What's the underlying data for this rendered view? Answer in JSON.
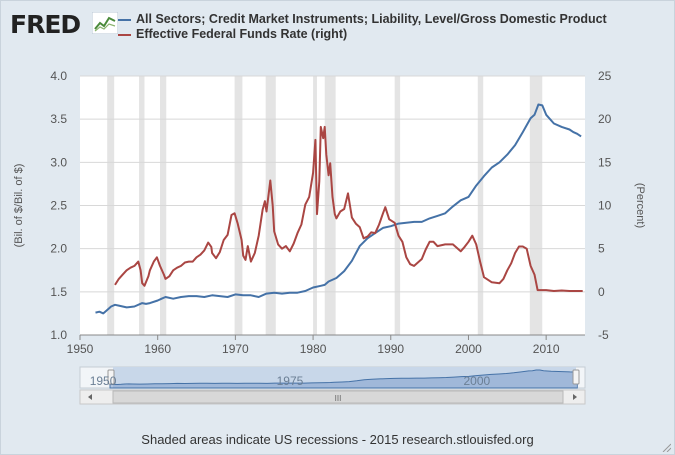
{
  "logo": {
    "text": "FRED",
    "icon": "fred-graph-icon"
  },
  "legend": [
    {
      "label": "All Sectors; Credit Market Instruments; Liability, Level/Gross Domestic Product",
      "color": "#4572a7"
    },
    {
      "label": "Effective Federal Funds Rate (right)",
      "color": "#aa4643"
    }
  ],
  "footer": "Shaded areas indicate US recessions - 2015 research.stlouisfed.org",
  "navigator": {
    "labels": [
      "1950",
      "1975",
      "2000"
    ],
    "scroll_icon": "III"
  },
  "chart_data": {
    "type": "line",
    "xlim": [
      1950,
      2015
    ],
    "x_ticks": [
      1950,
      1960,
      1970,
      1980,
      1990,
      2000,
      2010
    ],
    "y_left": {
      "label": "(Bil. of $/Bil. of $)",
      "lim": [
        1.0,
        4.0
      ],
      "ticks": [
        "1.0",
        "1.5",
        "2.0",
        "2.5",
        "3.0",
        "3.5",
        "4.0"
      ]
    },
    "y_right": {
      "label": "(Percent)",
      "lim": [
        -5,
        25
      ],
      "ticks": [
        "-5",
        "0",
        "5",
        "10",
        "15",
        "20",
        "25"
      ]
    },
    "recessions": [
      [
        1953.5,
        1954.4
      ],
      [
        1957.6,
        1958.3
      ],
      [
        1960.3,
        1961.1
      ],
      [
        1969.9,
        1970.9
      ],
      [
        1973.9,
        1975.2
      ],
      [
        1980.0,
        1980.5
      ],
      [
        1981.5,
        1982.9
      ],
      [
        1990.5,
        1991.2
      ],
      [
        2001.2,
        2001.9
      ],
      [
        2007.9,
        2009.5
      ]
    ],
    "series": [
      {
        "name": "All Sectors; Credit Market Instruments; Liability, Level/Gross Domestic Product",
        "axis": "left",
        "color": "#4572a7",
        "points": [
          [
            1952,
            1.26
          ],
          [
            1952.5,
            1.27
          ],
          [
            1953,
            1.25
          ],
          [
            1953.5,
            1.29
          ],
          [
            1954,
            1.33
          ],
          [
            1954.5,
            1.35
          ],
          [
            1955,
            1.34
          ],
          [
            1956,
            1.32
          ],
          [
            1957,
            1.33
          ],
          [
            1958,
            1.37
          ],
          [
            1958.5,
            1.36
          ],
          [
            1959,
            1.37
          ],
          [
            1960,
            1.4
          ],
          [
            1960.5,
            1.42
          ],
          [
            1961,
            1.44
          ],
          [
            1962,
            1.42
          ],
          [
            1963,
            1.44
          ],
          [
            1964,
            1.45
          ],
          [
            1965,
            1.45
          ],
          [
            1966,
            1.44
          ],
          [
            1967,
            1.46
          ],
          [
            1968,
            1.45
          ],
          [
            1969,
            1.44
          ],
          [
            1970,
            1.47
          ],
          [
            1971,
            1.46
          ],
          [
            1972,
            1.46
          ],
          [
            1973,
            1.44
          ],
          [
            1974,
            1.48
          ],
          [
            1975,
            1.49
          ],
          [
            1976,
            1.48
          ],
          [
            1977,
            1.49
          ],
          [
            1978,
            1.49
          ],
          [
            1979,
            1.51
          ],
          [
            1980,
            1.55
          ],
          [
            1981,
            1.57
          ],
          [
            1981.5,
            1.58
          ],
          [
            1982,
            1.62
          ],
          [
            1983,
            1.66
          ],
          [
            1984,
            1.74
          ],
          [
            1985,
            1.86
          ],
          [
            1986,
            2.03
          ],
          [
            1987,
            2.12
          ],
          [
            1988,
            2.18
          ],
          [
            1989,
            2.24
          ],
          [
            1990,
            2.26
          ],
          [
            1991,
            2.29
          ],
          [
            1992,
            2.3
          ],
          [
            1993,
            2.31
          ],
          [
            1994,
            2.31
          ],
          [
            1995,
            2.35
          ],
          [
            1996,
            2.38
          ],
          [
            1997,
            2.41
          ],
          [
            1998,
            2.49
          ],
          [
            1999,
            2.56
          ],
          [
            2000,
            2.6
          ],
          [
            2001,
            2.73
          ],
          [
            2002,
            2.84
          ],
          [
            2003,
            2.94
          ],
          [
            2004,
            3.0
          ],
          [
            2005,
            3.09
          ],
          [
            2006,
            3.2
          ],
          [
            2007,
            3.35
          ],
          [
            2008,
            3.51
          ],
          [
            2008.5,
            3.55
          ],
          [
            2009,
            3.67
          ],
          [
            2009.5,
            3.66
          ],
          [
            2010,
            3.55
          ],
          [
            2011,
            3.45
          ],
          [
            2012,
            3.41
          ],
          [
            2013,
            3.38
          ],
          [
            2013.5,
            3.35
          ],
          [
            2014,
            3.33
          ],
          [
            2014.5,
            3.3
          ]
        ]
      },
      {
        "name": "Effective Federal Funds Rate (right)",
        "axis": "right",
        "color": "#aa4643",
        "points": [
          [
            1954.5,
            0.8
          ],
          [
            1955,
            1.5
          ],
          [
            1955.5,
            2.0
          ],
          [
            1956,
            2.5
          ],
          [
            1956.5,
            2.8
          ],
          [
            1957,
            3.0
          ],
          [
            1957.5,
            3.5
          ],
          [
            1957.8,
            2.5
          ],
          [
            1958,
            1.0
          ],
          [
            1958.3,
            0.7
          ],
          [
            1958.8,
            1.8
          ],
          [
            1959,
            2.5
          ],
          [
            1959.5,
            3.5
          ],
          [
            1959.9,
            4.0
          ],
          [
            1960.3,
            3.0
          ],
          [
            1960.8,
            2.0
          ],
          [
            1961,
            1.5
          ],
          [
            1961.5,
            1.8
          ],
          [
            1962,
            2.5
          ],
          [
            1962.5,
            2.8
          ],
          [
            1963,
            3.0
          ],
          [
            1963.5,
            3.4
          ],
          [
            1964,
            3.5
          ],
          [
            1964.5,
            3.5
          ],
          [
            1965,
            4.0
          ],
          [
            1965.5,
            4.3
          ],
          [
            1966,
            4.8
          ],
          [
            1966.5,
            5.7
          ],
          [
            1966.9,
            5.2
          ],
          [
            1967,
            4.5
          ],
          [
            1967.5,
            3.9
          ],
          [
            1968,
            4.6
          ],
          [
            1968.5,
            6.0
          ],
          [
            1969,
            6.6
          ],
          [
            1969.5,
            8.9
          ],
          [
            1969.9,
            9.1
          ],
          [
            1970.3,
            7.9
          ],
          [
            1970.8,
            6.0
          ],
          [
            1971,
            4.2
          ],
          [
            1971.3,
            3.7
          ],
          [
            1971.6,
            5.3
          ],
          [
            1972,
            3.5
          ],
          [
            1972.5,
            4.5
          ],
          [
            1973,
            6.5
          ],
          [
            1973.5,
            9.5
          ],
          [
            1973.8,
            10.5
          ],
          [
            1974,
            9.3
          ],
          [
            1974.5,
            12.9
          ],
          [
            1974.8,
            10.0
          ],
          [
            1975,
            7.0
          ],
          [
            1975.5,
            5.5
          ],
          [
            1976,
            5.0
          ],
          [
            1976.5,
            5.3
          ],
          [
            1977,
            4.7
          ],
          [
            1977.5,
            5.6
          ],
          [
            1978,
            6.8
          ],
          [
            1978.5,
            7.8
          ],
          [
            1979,
            10.1
          ],
          [
            1979.5,
            11.0
          ],
          [
            1980,
            13.8
          ],
          [
            1980.3,
            17.6
          ],
          [
            1980.5,
            9.0
          ],
          [
            1980.8,
            12.8
          ],
          [
            1981,
            19.1
          ],
          [
            1981.3,
            17.8
          ],
          [
            1981.5,
            19.1
          ],
          [
            1981.7,
            15.9
          ],
          [
            1982,
            13.5
          ],
          [
            1982.2,
            14.9
          ],
          [
            1982.5,
            11.0
          ],
          [
            1982.8,
            9.0
          ],
          [
            1983,
            8.5
          ],
          [
            1983.5,
            9.3
          ],
          [
            1984,
            9.6
          ],
          [
            1984.5,
            11.4
          ],
          [
            1985,
            8.6
          ],
          [
            1985.5,
            7.9
          ],
          [
            1986,
            7.5
          ],
          [
            1986.5,
            6.2
          ],
          [
            1987,
            6.4
          ],
          [
            1987.5,
            6.9
          ],
          [
            1988,
            6.8
          ],
          [
            1988.5,
            7.8
          ],
          [
            1989,
            9.1
          ],
          [
            1989.3,
            9.8
          ],
          [
            1989.8,
            8.4
          ],
          [
            1990.5,
            8.0
          ],
          [
            1991,
            6.5
          ],
          [
            1991.5,
            5.8
          ],
          [
            1992,
            4.0
          ],
          [
            1992.5,
            3.2
          ],
          [
            1993,
            3.0
          ],
          [
            1994,
            3.8
          ],
          [
            1994.5,
            4.9
          ],
          [
            1995,
            5.8
          ],
          [
            1995.5,
            5.8
          ],
          [
            1996,
            5.3
          ],
          [
            1997,
            5.5
          ],
          [
            1998,
            5.5
          ],
          [
            1999,
            4.7
          ],
          [
            1999.5,
            5.2
          ],
          [
            2000,
            5.8
          ],
          [
            2000.5,
            6.5
          ],
          [
            2001,
            5.5
          ],
          [
            2001.5,
            3.5
          ],
          [
            2002,
            1.7
          ],
          [
            2003,
            1.1
          ],
          [
            2004,
            1.0
          ],
          [
            2004.5,
            1.5
          ],
          [
            2005,
            2.5
          ],
          [
            2005.5,
            3.3
          ],
          [
            2006,
            4.5
          ],
          [
            2006.5,
            5.25
          ],
          [
            2007,
            5.25
          ],
          [
            2007.5,
            5.0
          ],
          [
            2008,
            3.0
          ],
          [
            2008.5,
            2.0
          ],
          [
            2008.9,
            0.2
          ],
          [
            2009,
            0.2
          ],
          [
            2010,
            0.2
          ],
          [
            2011,
            0.1
          ],
          [
            2012,
            0.15
          ],
          [
            2013,
            0.1
          ],
          [
            2014,
            0.1
          ],
          [
            2014.7,
            0.1
          ]
        ]
      }
    ]
  }
}
